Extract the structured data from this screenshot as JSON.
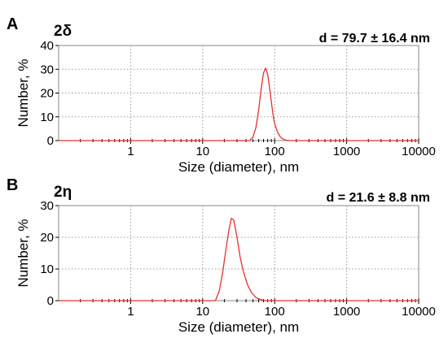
{
  "chart_data": [
    {
      "type": "line",
      "panel_label": "A",
      "subtitle": "2δ",
      "annotation": "d = 79.7 ± 16.4 nm",
      "xlabel": "Size (diameter), nm",
      "ylabel": "Number, %",
      "xscale": "log",
      "xlim": [
        0.1,
        10000
      ],
      "ylim": [
        0,
        40
      ],
      "xticks": [
        1,
        10,
        100,
        1000,
        10000
      ],
      "xtick_labels": [
        "1",
        "10",
        "100",
        "1000",
        "10000"
      ],
      "yticks": [
        0,
        10,
        20,
        30,
        40
      ],
      "ytick_labels": [
        "0",
        "10",
        "20",
        "30",
        "40"
      ],
      "grid": true,
      "series": [
        {
          "color": "#e8302a",
          "x": [
            0.1,
            45,
            50,
            55,
            60,
            65,
            70,
            75,
            80,
            85,
            90,
            95,
            100,
            110,
            120,
            130,
            140,
            150,
            160,
            10000
          ],
          "y": [
            0,
            0,
            1.5,
            5.5,
            13,
            22,
            28.5,
            30.5,
            28,
            22,
            16,
            11,
            7,
            3.5,
            1.5,
            0.7,
            0.3,
            0.1,
            0,
            0
          ]
        }
      ]
    },
    {
      "type": "line",
      "panel_label": "B",
      "subtitle": "2η",
      "annotation": "d = 21.6 ± 8.8 nm",
      "xlabel": "Size (diameter), nm",
      "ylabel": "Number, %",
      "xscale": "log",
      "xlim": [
        0.1,
        10000
      ],
      "ylim": [
        0,
        30
      ],
      "xticks": [
        1,
        10,
        100,
        1000,
        10000
      ],
      "xtick_labels": [
        "1",
        "10",
        "100",
        "1000",
        "10000"
      ],
      "yticks": [
        0,
        10,
        20,
        30
      ],
      "ytick_labels": [
        "0",
        "10",
        "20",
        "30"
      ],
      "grid": true,
      "series": [
        {
          "color": "#e8302a",
          "x": [
            0.1,
            15,
            17,
            19,
            21,
            23,
            25,
            27,
            30,
            33,
            37,
            42,
            48,
            55,
            65,
            75,
            10000
          ],
          "y": [
            0,
            0,
            3,
            9,
            16,
            22,
            26,
            25.5,
            20,
            14,
            9,
            5,
            2.5,
            1,
            0.3,
            0,
            0
          ]
        }
      ]
    }
  ]
}
